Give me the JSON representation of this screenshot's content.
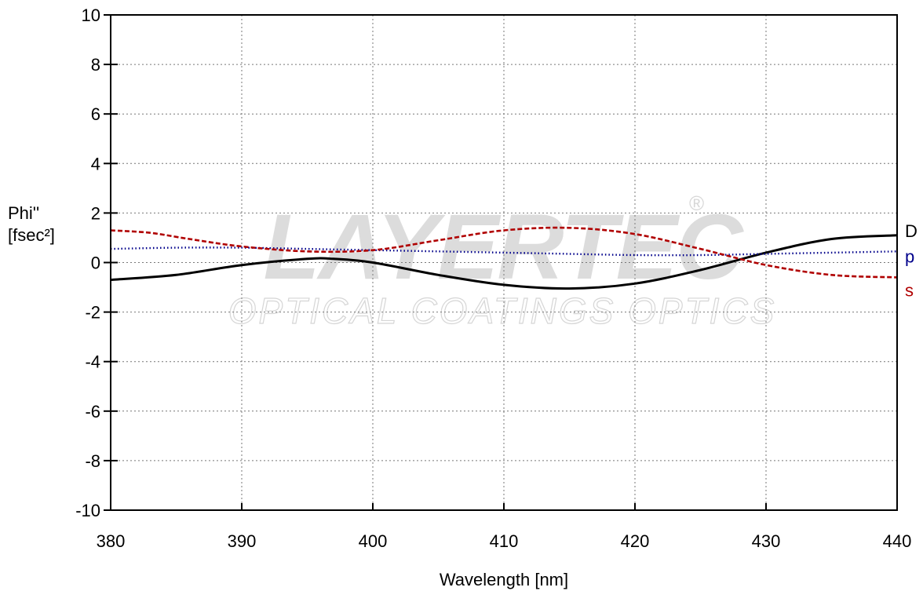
{
  "chart_data": {
    "type": "line",
    "xlabel": "Wavelength [nm]",
    "ylabel_line1": "Phi''",
    "ylabel_line2": "[fsec²]",
    "xlim": [
      380,
      440
    ],
    "ylim": [
      -10,
      10
    ],
    "x_ticks": [
      380,
      390,
      400,
      410,
      420,
      430,
      440
    ],
    "y_ticks": [
      10,
      8,
      6,
      4,
      2,
      0,
      -2,
      -4,
      -6,
      -8,
      -10
    ],
    "grid": true,
    "watermark": {
      "brand": "LAYERTEC",
      "registered": "®",
      "tagline": "OPTICAL COATINGS  OPTICS"
    },
    "series": [
      {
        "name": "D",
        "color": "#000000",
        "style": "solid",
        "x": [
          380,
          385,
          390,
          395,
          397,
          400,
          405,
          410,
          415,
          420,
          425,
          430,
          435,
          440
        ],
        "y": [
          -0.7,
          -0.5,
          -0.1,
          0.15,
          0.15,
          0.0,
          -0.5,
          -0.9,
          -1.05,
          -0.85,
          -0.3,
          0.4,
          0.95,
          1.1
        ]
      },
      {
        "name": "p",
        "color": "#00008b",
        "style": "dotted",
        "x": [
          380,
          385,
          390,
          395,
          400,
          405,
          410,
          415,
          420,
          425,
          430,
          435,
          440
        ],
        "y": [
          0.55,
          0.6,
          0.6,
          0.55,
          0.5,
          0.45,
          0.4,
          0.35,
          0.3,
          0.3,
          0.35,
          0.4,
          0.45
        ]
      },
      {
        "name": "s",
        "color": "#b00000",
        "style": "dashed",
        "x": [
          380,
          383,
          386,
          390,
          395,
          400,
          405,
          410,
          415,
          420,
          425,
          430,
          435,
          440
        ],
        "y": [
          1.3,
          1.2,
          0.95,
          0.65,
          0.45,
          0.5,
          0.9,
          1.3,
          1.4,
          1.15,
          0.55,
          -0.1,
          -0.5,
          -0.6
        ]
      }
    ]
  }
}
